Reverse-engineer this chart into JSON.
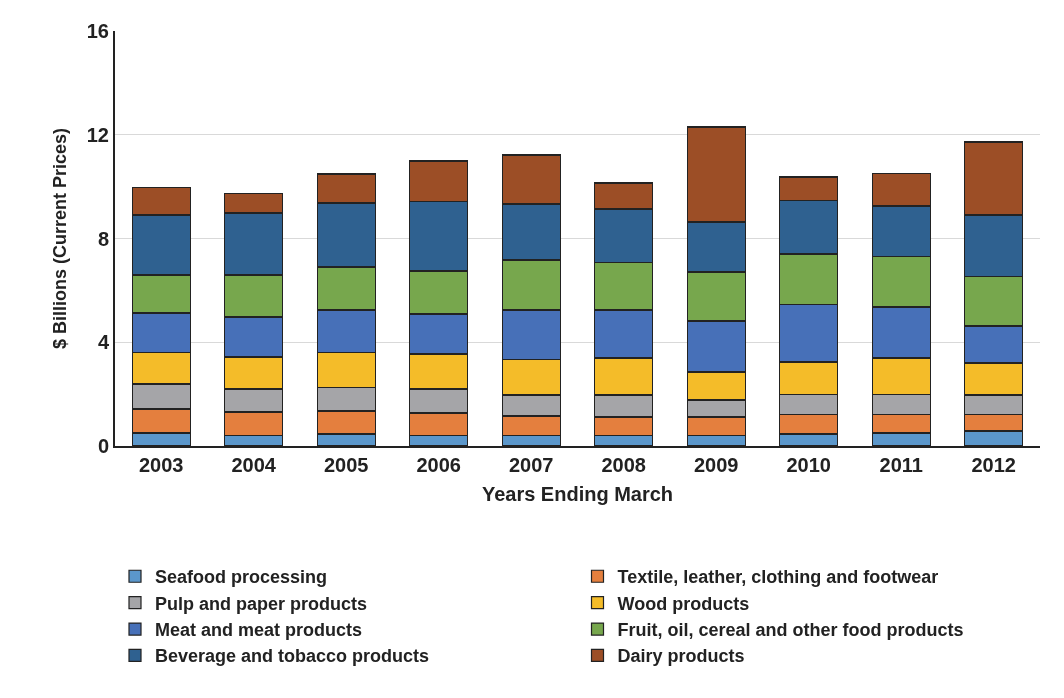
{
  "chart_data": {
    "type": "bar",
    "stacked": true,
    "xlabel": "Years Ending March",
    "ylabel": "$ Billions (Current Prices)",
    "categories": [
      "2003",
      "2004",
      "2005",
      "2006",
      "2007",
      "2008",
      "2009",
      "2010",
      "2011",
      "2012"
    ],
    "series": [
      {
        "name": "Seafood processing",
        "color": "#5b97cb",
        "values": [
          0.5,
          0.42,
          0.46,
          0.42,
          0.42,
          0.39,
          0.39,
          0.46,
          0.5,
          0.58
        ]
      },
      {
        "name": "Textile, leather, clothing and footwear",
        "color": "#e47f3e",
        "values": [
          0.93,
          0.89,
          0.89,
          0.85,
          0.74,
          0.73,
          0.73,
          0.74,
          0.7,
          0.62
        ]
      },
      {
        "name": "Pulp and paper products",
        "color": "#a5a5a8",
        "values": [
          0.96,
          0.89,
          0.92,
          0.93,
          0.81,
          0.85,
          0.65,
          0.8,
          0.8,
          0.77
        ]
      },
      {
        "name": "Wood products",
        "color": "#f4bc29",
        "values": [
          1.23,
          1.23,
          1.35,
          1.35,
          1.35,
          1.42,
          1.08,
          1.24,
          1.39,
          1.23
        ]
      },
      {
        "name": "Meat and meat products",
        "color": "#4770b8",
        "values": [
          1.51,
          1.54,
          1.62,
          1.54,
          1.92,
          1.85,
          1.97,
          2.23,
          1.97,
          1.43
        ]
      },
      {
        "name": "Fruit, oil, cereal and other food products",
        "color": "#77a74d",
        "values": [
          1.46,
          1.62,
          1.66,
          1.66,
          1.93,
          1.85,
          1.89,
          1.93,
          1.96,
          1.92
        ]
      },
      {
        "name": "Beverage and tobacco products",
        "color": "#2f6190",
        "values": [
          2.32,
          2.39,
          2.47,
          2.69,
          2.16,
          2.05,
          1.93,
          2.08,
          1.93,
          2.36
        ]
      },
      {
        "name": "Dairy products",
        "color": "#9c4e26",
        "values": [
          1.07,
          0.77,
          1.12,
          1.55,
          1.89,
          1.0,
          3.66,
          0.89,
          1.27,
          2.81
        ]
      }
    ],
    "ylim": [
      0,
      16
    ],
    "yticks": [
      0,
      4,
      8,
      12,
      16
    ],
    "grid": "y",
    "legend": "bottom"
  }
}
